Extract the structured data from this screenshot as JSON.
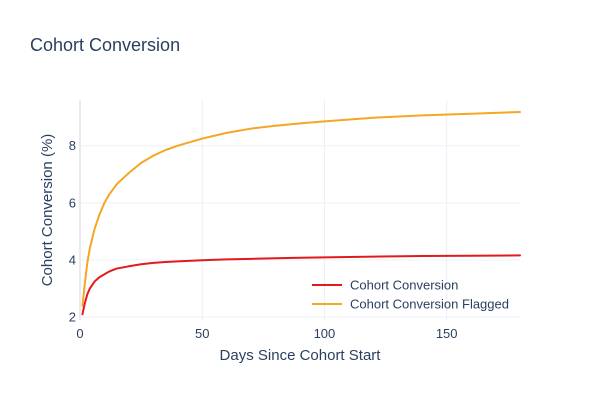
{
  "chart_data": {
    "type": "line",
    "title": "Cohort Conversion",
    "xlabel": "Days Since Cohort Start",
    "ylabel": "Cohort Conversion (%)",
    "xlim": [
      0,
      180
    ],
    "ylim": [
      1.9,
      9.6
    ],
    "x_ticks": [
      0,
      50,
      100,
      150
    ],
    "y_ticks": [
      2,
      4,
      6,
      8
    ],
    "grid": true,
    "legend_position": "bottom-right",
    "series": [
      {
        "name": "Cohort Conversion",
        "color": "#e31a1c",
        "x": [
          1,
          2,
          3,
          4,
          6,
          8,
          10,
          12,
          15,
          20,
          25,
          30,
          35,
          40,
          50,
          60,
          70,
          80,
          90,
          100,
          120,
          140,
          160,
          180
        ],
        "y": [
          2.1,
          2.5,
          2.8,
          3.0,
          3.25,
          3.4,
          3.5,
          3.6,
          3.7,
          3.78,
          3.85,
          3.9,
          3.93,
          3.95,
          3.99,
          4.02,
          4.04,
          4.06,
          4.08,
          4.09,
          4.12,
          4.14,
          4.15,
          4.16
        ]
      },
      {
        "name": "Cohort Conversion Flagged",
        "color": "#f5a623",
        "x": [
          1,
          2,
          3,
          4,
          6,
          8,
          10,
          12,
          15,
          20,
          25,
          30,
          35,
          40,
          50,
          60,
          70,
          80,
          90,
          100,
          120,
          140,
          160,
          180
        ],
        "y": [
          2.4,
          3.2,
          3.9,
          4.4,
          5.1,
          5.6,
          6.0,
          6.3,
          6.65,
          7.05,
          7.4,
          7.65,
          7.85,
          8.0,
          8.25,
          8.45,
          8.6,
          8.7,
          8.78,
          8.85,
          8.98,
          9.06,
          9.12,
          9.18
        ]
      }
    ]
  }
}
